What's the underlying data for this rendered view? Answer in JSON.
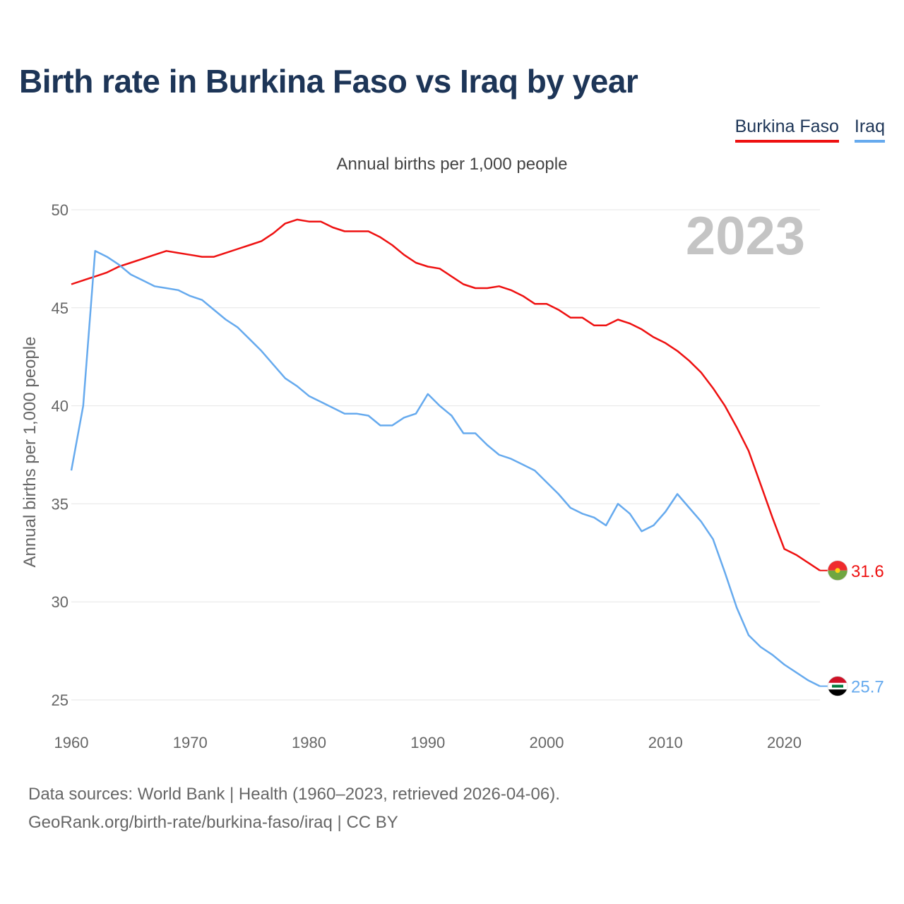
{
  "title": "Birth rate in Burkina Faso vs Iraq by year",
  "legend": [
    {
      "label": "Burkina Faso",
      "color": "#ee1111"
    },
    {
      "label": "Iraq",
      "color": "#66aaee"
    }
  ],
  "source": {
    "line1": "Data sources: World Bank | Health (1960–2023, retrieved 2026-04-06).",
    "line2": "GeoRank.org/birth-rate/burkina-faso/iraq | CC BY"
  },
  "chart_data": {
    "type": "line",
    "title": "Birth rate in Burkina Faso vs Iraq by year",
    "subtitle": "Annual births per 1,000 people",
    "xlabel": "",
    "ylabel": "Annual births per 1,000 people",
    "year_label": "2023",
    "xlim": [
      1960,
      2023
    ],
    "ylim": [
      25,
      50
    ],
    "xticks": [
      1960,
      1970,
      1980,
      1990,
      2000,
      2010,
      2020
    ],
    "yticks": [
      25,
      30,
      35,
      40,
      45,
      50
    ],
    "grid": true,
    "x": [
      1960,
      1961,
      1962,
      1963,
      1964,
      1965,
      1966,
      1967,
      1968,
      1969,
      1970,
      1971,
      1972,
      1973,
      1974,
      1975,
      1976,
      1977,
      1978,
      1979,
      1980,
      1981,
      1982,
      1983,
      1984,
      1985,
      1986,
      1987,
      1988,
      1989,
      1990,
      1991,
      1992,
      1993,
      1994,
      1995,
      1996,
      1997,
      1998,
      1999,
      2000,
      2001,
      2002,
      2003,
      2004,
      2005,
      2006,
      2007,
      2008,
      2009,
      2010,
      2011,
      2012,
      2013,
      2014,
      2015,
      2016,
      2017,
      2018,
      2019,
      2020,
      2021,
      2022,
      2023
    ],
    "series": [
      {
        "name": "Burkina Faso",
        "color": "#ee1111",
        "end_label": "31.6",
        "values": [
          46.2,
          46.4,
          46.6,
          46.8,
          47.1,
          47.3,
          47.5,
          47.7,
          47.9,
          47.8,
          47.7,
          47.6,
          47.6,
          47.8,
          48.0,
          48.2,
          48.4,
          48.8,
          49.3,
          49.5,
          49.4,
          49.4,
          49.1,
          48.9,
          48.9,
          48.9,
          48.6,
          48.2,
          47.7,
          47.3,
          47.1,
          47.0,
          46.6,
          46.2,
          46.0,
          46.0,
          46.1,
          45.9,
          45.6,
          45.2,
          45.2,
          44.9,
          44.5,
          44.5,
          44.1,
          44.1,
          44.4,
          44.2,
          43.9,
          43.5,
          43.2,
          42.8,
          42.3,
          41.7,
          40.9,
          40.0,
          38.9,
          37.7,
          36.0,
          34.3,
          32.7,
          32.4,
          32.0,
          31.6
        ]
      },
      {
        "name": "Iraq",
        "color": "#66aaee",
        "end_label": "25.7",
        "values": [
          36.7,
          40.0,
          47.9,
          47.6,
          47.2,
          46.7,
          46.4,
          46.1,
          46.0,
          45.9,
          45.6,
          45.4,
          44.9,
          44.4,
          44.0,
          43.4,
          42.8,
          42.1,
          41.4,
          41.0,
          40.5,
          40.2,
          39.9,
          39.6,
          39.6,
          39.5,
          39.0,
          39.0,
          39.4,
          39.6,
          40.6,
          40.0,
          39.5,
          38.6,
          38.6,
          38.0,
          37.5,
          37.3,
          37.0,
          36.7,
          36.1,
          35.5,
          34.8,
          34.5,
          34.3,
          33.9,
          35.0,
          34.5,
          33.6,
          33.9,
          34.6,
          35.5,
          34.8,
          34.1,
          33.2,
          31.5,
          29.7,
          28.3,
          27.7,
          27.3,
          26.8,
          26.4,
          26.0,
          25.7
        ]
      }
    ]
  }
}
